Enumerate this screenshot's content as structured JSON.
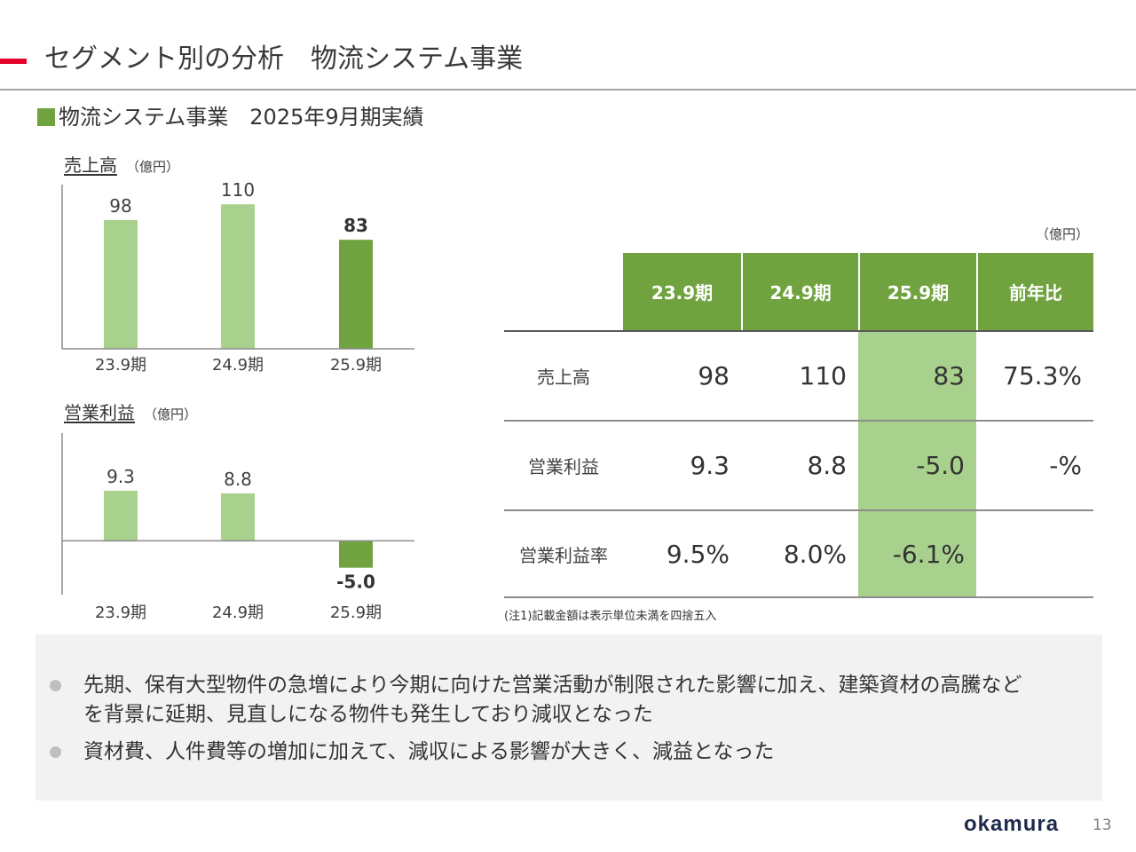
{
  "slide": {
    "title": "セグメント別の分析　物流システム事業",
    "subtitle": "物流システム事業　2025年9月期実績",
    "logo_text": "okamura",
    "page_number": "13"
  },
  "chart_data": [
    {
      "type": "bar",
      "title": "売上高",
      "unit": "（億円）",
      "categories": [
        "23.9期",
        "24.9期",
        "25.9期"
      ],
      "values": [
        98,
        110,
        83
      ],
      "data_labels": [
        "98",
        "110",
        "83"
      ],
      "highlight_index": 2,
      "ylim": [
        0,
        125
      ],
      "bar_color": "#a9d18e",
      "highlight_color": "#70a33f"
    },
    {
      "type": "bar",
      "title": "営業利益",
      "unit": "（億円）",
      "categories": [
        "23.9期",
        "24.9期",
        "25.9期"
      ],
      "values": [
        9.3,
        8.8,
        -5.0
      ],
      "data_labels": [
        "9.3",
        "8.8",
        "-5.0"
      ],
      "highlight_index": 2,
      "ylim": [
        -10,
        20
      ],
      "bar_color": "#a9d18e",
      "highlight_color": "#70a33f"
    }
  ],
  "table": {
    "unit": "（億円）",
    "columns": [
      "23.9期",
      "24.9期",
      "25.9期",
      "前年比"
    ],
    "rows": [
      {
        "label": "売上高",
        "cells": [
          "98",
          "110",
          "83",
          "75.3%"
        ]
      },
      {
        "label": "営業利益",
        "cells": [
          "9.3",
          "8.8",
          "-5.0",
          "-%"
        ]
      },
      {
        "label": "営業利益率",
        "cells": [
          "9.5%",
          "8.0%",
          "-6.1%",
          ""
        ]
      }
    ],
    "note": "(注1)記載金額は表示単位未満を四捨五入"
  },
  "summary": {
    "bullets": [
      {
        "lines": [
          "先期、保有大型物件の急増により今期に向けた営業活動が制限された影響に加え、建築資材の高騰など",
          "を背景に延期、見直しになる物件も発生しており減収となった"
        ]
      },
      {
        "lines": [
          "資材費、人件費等の増加に加えて、減収による影響が大きく、減益となった"
        ]
      }
    ]
  }
}
